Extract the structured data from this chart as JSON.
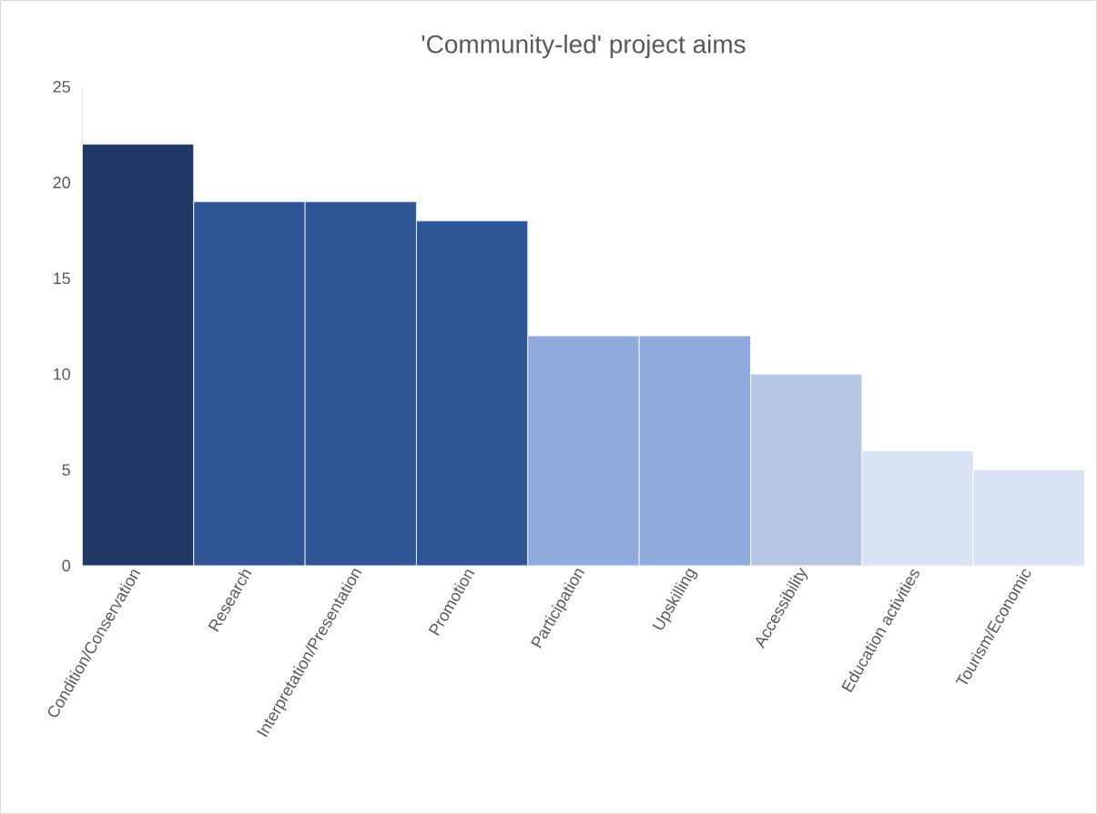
{
  "chart_data": {
    "type": "bar",
    "title": "'Community-led' project aims",
    "categories": [
      "Condition/Conservation",
      "Research",
      "Interpretation/Presentation",
      "Promotion",
      "Participation",
      "Upskilling",
      "Accessibility",
      "Education activities",
      "Tourism/Economic"
    ],
    "values": [
      22,
      19,
      19,
      18,
      12,
      12,
      10,
      6,
      5
    ],
    "colors": [
      "#1f3864",
      "#2f5597",
      "#2f5597",
      "#2f5597",
      "#8faadc",
      "#8faadc",
      "#b4c7e7",
      "#dae3f3",
      "#dae3f3"
    ],
    "ylim": [
      0,
      25
    ],
    "yticks": [
      0,
      5,
      10,
      15,
      20,
      25
    ]
  }
}
